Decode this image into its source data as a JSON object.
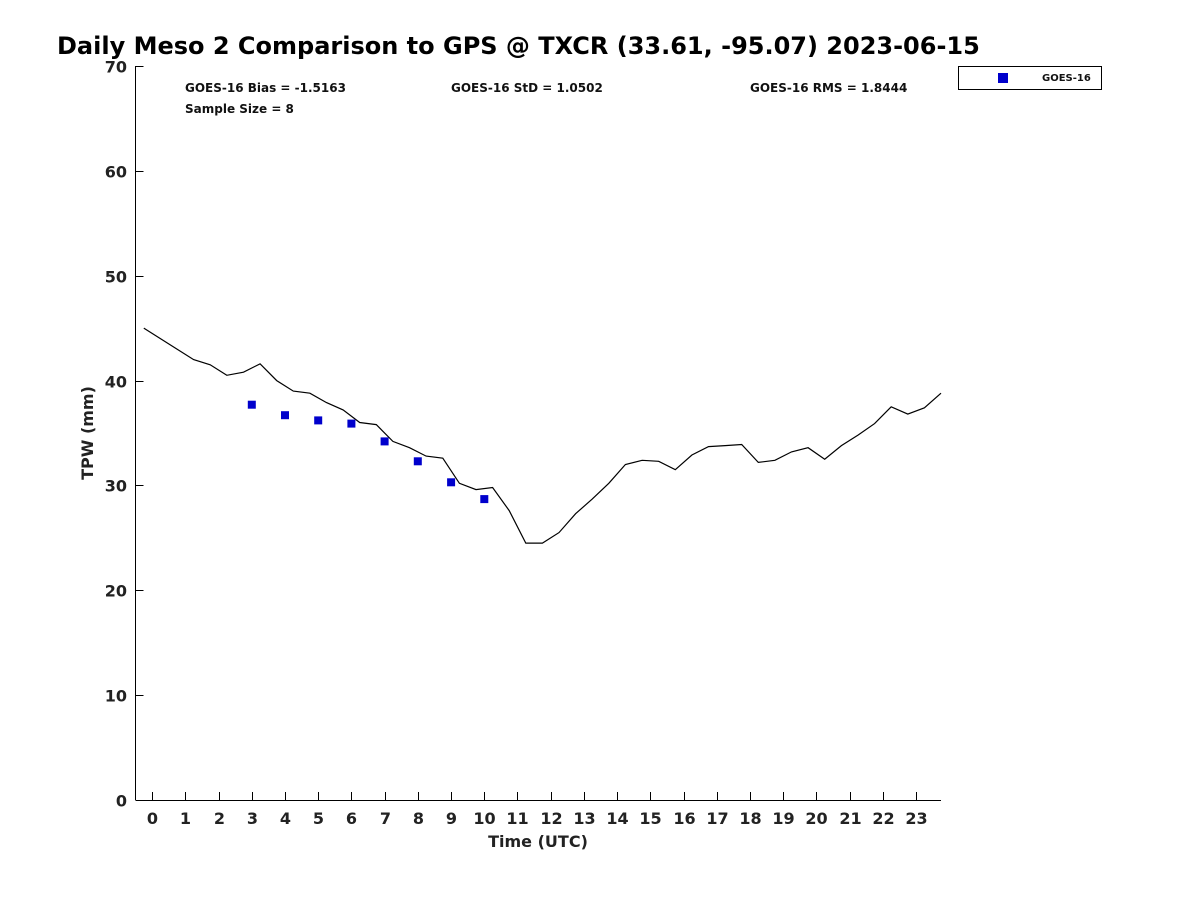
{
  "chart_data": {
    "type": "scatter",
    "title": "Daily Meso 2 Comparison to GPS @ TXCR (33.61, -95.07) 2023-06-15",
    "xlabel": "Time (UTC)",
    "ylabel": "TPW (mm)",
    "xlim": [
      -0.5,
      23.75
    ],
    "ylim": [
      0,
      70
    ],
    "x_ticks": [
      "0",
      "1",
      "2",
      "3",
      "4",
      "5",
      "6",
      "7",
      "8",
      "9",
      "10",
      "11",
      "12",
      "13",
      "14",
      "15",
      "16",
      "17",
      "18",
      "19",
      "20",
      "21",
      "22",
      "23"
    ],
    "y_ticks": [
      "0",
      "10",
      "20",
      "30",
      "40",
      "50",
      "60",
      "70"
    ],
    "grid": false,
    "legend_position": "top-right, outside plot",
    "stats": {
      "bias": "GOES-16 Bias = -1.5163",
      "std": "GOES-16 StD = 1.0502",
      "rms": "GOES-16 RMS = 1.8444",
      "sample": "Sample Size = 8"
    },
    "series": [
      {
        "kind": "line",
        "color": "#000000",
        "x": [
          -0.25,
          0.25,
          0.75,
          1.25,
          1.75,
          2.25,
          2.75,
          3.25,
          3.75,
          4.25,
          4.75,
          5.25,
          5.75,
          6.25,
          6.75,
          7.25,
          7.75,
          8.25,
          8.75,
          9.25,
          9.75,
          10.25,
          10.75,
          11.25,
          11.75,
          12.25,
          12.75,
          13.25,
          13.75,
          14.25,
          14.75,
          15.25,
          15.75,
          16.25,
          16.75,
          17.25,
          17.75,
          18.25,
          18.75,
          19.25,
          19.75,
          20.25,
          20.75,
          21.25,
          21.75,
          22.25,
          22.75,
          23.25,
          23.75
        ],
        "y": [
          45.0,
          44.0,
          43.0,
          42.0,
          41.5,
          40.5,
          40.8,
          41.6,
          40.0,
          39.0,
          38.8,
          37.9,
          37.2,
          36.0,
          35.8,
          34.2,
          33.6,
          32.8,
          32.6,
          30.2,
          29.6,
          29.8,
          27.6,
          24.5,
          24.5,
          25.5,
          27.3,
          28.7,
          30.2,
          32.0,
          32.4,
          32.3,
          31.5,
          32.9,
          33.7,
          33.8,
          33.9,
          32.2,
          32.4,
          33.2,
          33.6,
          32.5,
          33.8,
          34.8,
          35.9,
          37.5,
          36.8,
          37.4,
          38.8
        ]
      },
      {
        "name": "GOES-16",
        "kind": "scatter",
        "color": "#0000cc",
        "marker": "square",
        "x": [
          3,
          4,
          5,
          6,
          7,
          8,
          9,
          10
        ],
        "y": [
          37.7,
          36.7,
          36.2,
          35.9,
          34.2,
          32.3,
          30.3,
          28.7
        ]
      }
    ]
  }
}
